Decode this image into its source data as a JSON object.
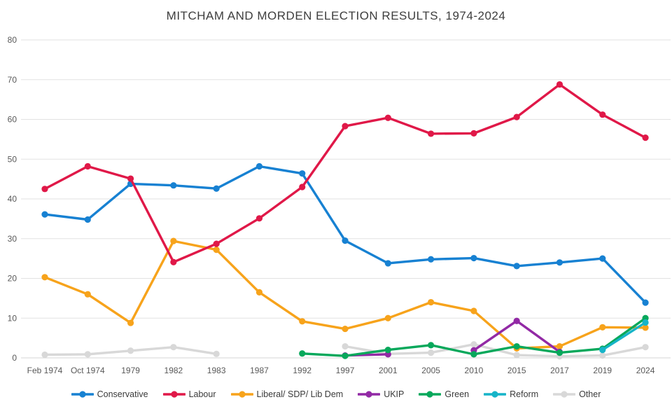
{
  "chart_data": {
    "type": "line",
    "title": "MITCHAM AND MORDEN ELECTION RESULTS, 1974-2024",
    "categories": [
      "Feb 1974",
      "Oct 1974",
      "1979",
      "1982",
      "1983",
      "1987",
      "1992",
      "1997",
      "2001",
      "2005",
      "2010",
      "2015",
      "2017",
      "2019",
      "2024"
    ],
    "series": [
      {
        "name": "Conservative",
        "color": "#1781d2",
        "values": [
          36.1,
          34.8,
          43.8,
          43.4,
          42.6,
          48.2,
          46.4,
          29.5,
          23.8,
          24.8,
          25.1,
          23.1,
          24.0,
          25.0,
          13.9
        ]
      },
      {
        "name": "Labour",
        "color": "#e01848",
        "values": [
          42.5,
          48.2,
          45.1,
          24.1,
          28.7,
          35.1,
          43.0,
          58.3,
          60.4,
          56.4,
          56.5,
          60.6,
          68.8,
          61.2,
          55.4
        ]
      },
      {
        "name": "Liberal/ SDP/ Lib Dem",
        "color": "#f7a31b",
        "values": [
          20.3,
          16.0,
          8.8,
          29.4,
          27.2,
          16.5,
          9.2,
          7.3,
          10.0,
          14.0,
          11.8,
          2.4,
          2.9,
          7.7,
          7.6
        ]
      },
      {
        "name": "UKIP",
        "color": "#9229a5",
        "values": [
          null,
          null,
          null,
          null,
          null,
          null,
          null,
          0.6,
          0.9,
          null,
          1.9,
          9.3,
          1.5,
          null,
          null
        ]
      },
      {
        "name": "Green",
        "color": "#07a85b",
        "values": [
          null,
          null,
          null,
          null,
          null,
          null,
          1.1,
          0.5,
          2.0,
          3.2,
          0.9,
          2.9,
          1.3,
          2.3,
          10.0
        ]
      },
      {
        "name": "Reform",
        "color": "#16b4c8",
        "values": [
          null,
          null,
          null,
          null,
          null,
          null,
          null,
          null,
          null,
          null,
          null,
          null,
          null,
          2.0,
          8.9
        ]
      },
      {
        "name": "Other",
        "color": "#d8d8d8",
        "values": [
          0.8,
          0.9,
          1.8,
          2.7,
          1.0,
          null,
          null,
          2.9,
          1.0,
          1.3,
          3.4,
          0.7,
          0.4,
          0.6,
          2.7
        ]
      }
    ],
    "ylim": [
      0,
      80
    ],
    "yticks": [
      0,
      10,
      20,
      30,
      40,
      50,
      60,
      70,
      80
    ],
    "grid": true,
    "legend_position": "bottom",
    "gridline_color": "#e2e2e2",
    "axis_label_color": "#595959"
  }
}
